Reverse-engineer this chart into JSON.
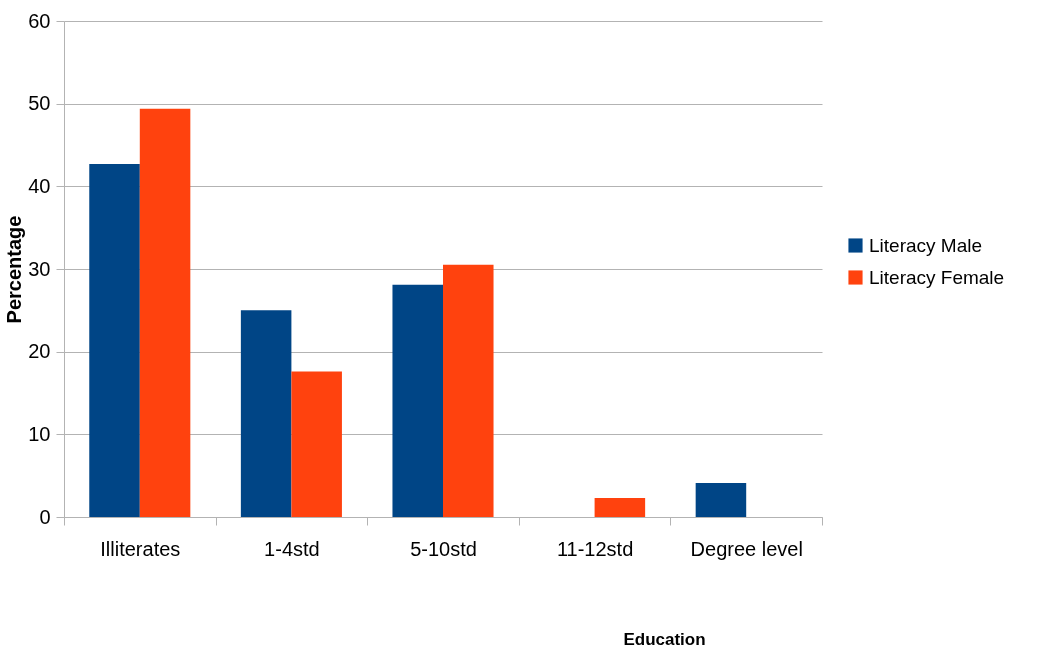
{
  "chart_data": {
    "type": "bar",
    "xlabel": "Education",
    "ylabel": "Percentage",
    "categories": [
      "Illiterates",
      "1-4std",
      "5-10std",
      "11-12std",
      "Degree level"
    ],
    "series": [
      {
        "name": "Literacy Male",
        "color": "#004586",
        "values": [
          42.7,
          25.0,
          28.1,
          0,
          4.1
        ]
      },
      {
        "name": "Literacy Female",
        "color": "#ff420e",
        "values": [
          49.4,
          17.6,
          30.5,
          2.3,
          0
        ]
      }
    ],
    "ylim": [
      0,
      60
    ],
    "yticks": [
      0,
      10,
      20,
      30,
      40,
      50,
      60
    ],
    "grid": "y",
    "legend": "right"
  }
}
